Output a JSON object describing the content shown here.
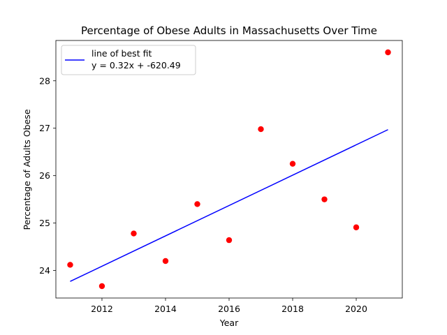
{
  "chart_data": {
    "type": "scatter",
    "title": "Percentage of Obese Adults in Massachusetts Over Time",
    "xlabel": "Year",
    "ylabel": "Percentage of Adults Obese",
    "xlim": [
      2010.55,
      2021.45
    ],
    "ylim": [
      23.42,
      28.85
    ],
    "xticks": [
      2012,
      2014,
      2016,
      2018,
      2020
    ],
    "yticks": [
      24,
      25,
      26,
      27,
      28
    ],
    "grid": false,
    "legend_position": "upper-left",
    "points": {
      "x": [
        2011,
        2012,
        2013,
        2014,
        2015,
        2016,
        2017,
        2018,
        2019,
        2020,
        2021
      ],
      "y": [
        24.12,
        23.67,
        24.78,
        24.2,
        25.4,
        24.64,
        26.98,
        26.25,
        25.5,
        24.91,
        28.6
      ],
      "color": "#ff0000"
    },
    "fit_line": {
      "name": "line of best fit",
      "equation": "y = 0.32x + -620.49",
      "x": [
        2011,
        2021
      ],
      "y": [
        23.77,
        26.97
      ],
      "color": "#0000ff"
    }
  }
}
